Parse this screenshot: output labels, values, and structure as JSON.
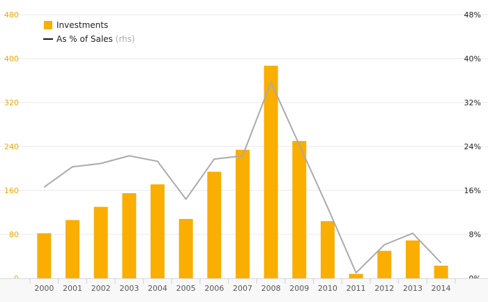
{
  "chart_data": {
    "type": "bar",
    "categories": [
      "2000",
      "2001",
      "2002",
      "2003",
      "2004",
      "2005",
      "2006",
      "2007",
      "2008",
      "2009",
      "2010",
      "2011",
      "2012",
      "2013",
      "2014"
    ],
    "series": [
      {
        "name": "Investments",
        "type": "bar",
        "axis": "left",
        "color": "#f9ae00",
        "values": [
          82,
          106,
          130,
          155,
          171,
          108,
          194,
          234,
          387,
          250,
          104,
          8,
          50,
          69,
          23
        ]
      },
      {
        "name": "As % of Sales",
        "name_suffix": "(rhs)",
        "type": "line",
        "axis": "right",
        "color": "#aaaaaa",
        "values": [
          16.6,
          20.3,
          20.9,
          22.3,
          21.3,
          14.4,
          21.7,
          22.3,
          35.7,
          24.3,
          12.9,
          1.0,
          6.1,
          8.2,
          2.8
        ]
      }
    ],
    "y_left": {
      "lim": [
        0,
        480
      ],
      "ticks": [
        "0",
        "80",
        "160",
        "240",
        "320",
        "400",
        "480"
      ],
      "tick_color": "#f5a800"
    },
    "y_right": {
      "lim": [
        0,
        48
      ],
      "ticks": [
        "0%",
        "8%",
        "16%",
        "24%",
        "32%",
        "40%",
        "48%"
      ]
    },
    "grid": true,
    "legend": {
      "position": "top-left",
      "items": [
        {
          "label": "Investments",
          "suffix": "",
          "marker": "square",
          "color": "#f9ae00"
        },
        {
          "label": "As % of Sales",
          "suffix": "(rhs)",
          "marker": "line",
          "color": "#111111"
        }
      ]
    }
  }
}
